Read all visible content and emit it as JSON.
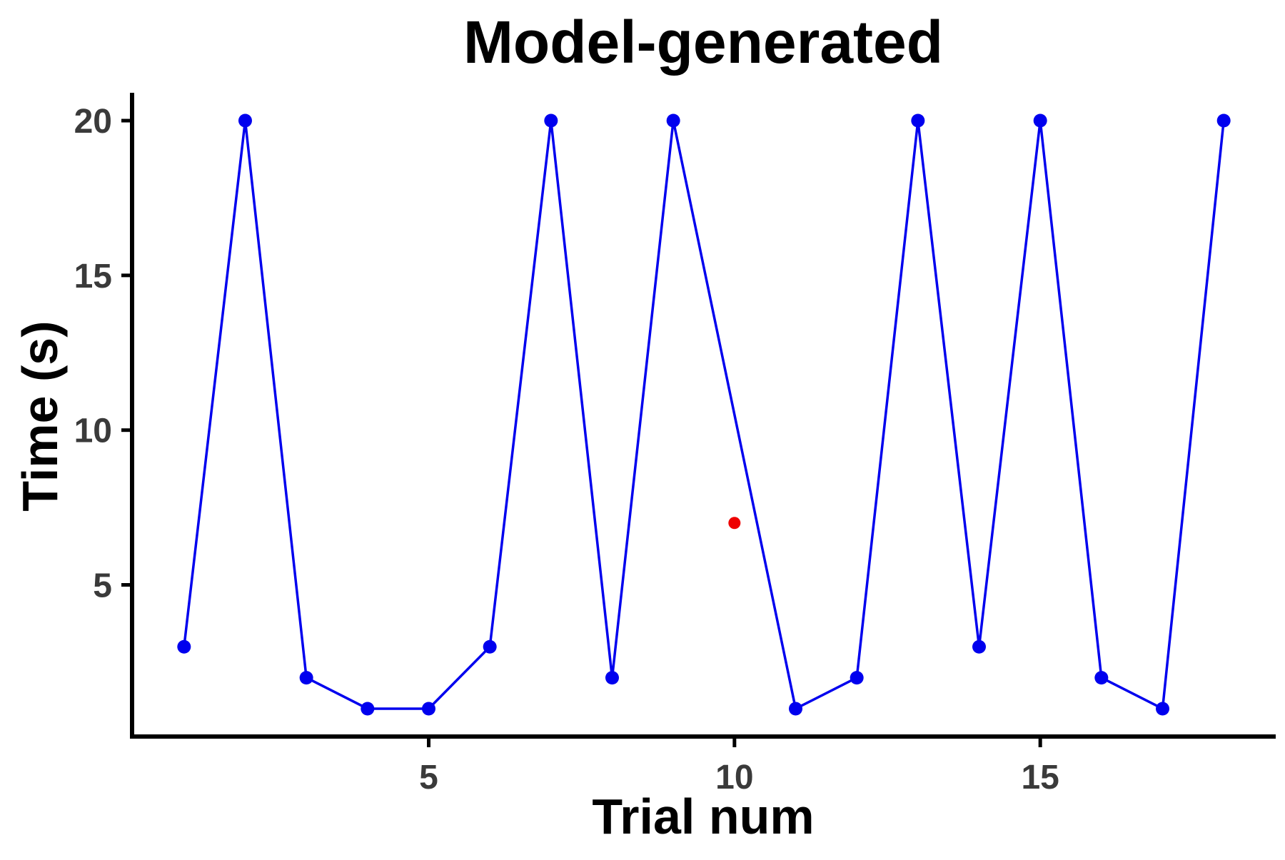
{
  "chart_data": {
    "type": "line",
    "title": "Model-generated",
    "xlabel": "Trial num",
    "ylabel": "Time (s)",
    "xlim": [
      0.15,
      18.85
    ],
    "ylim": [
      0.1,
      20.9
    ],
    "xticks": [
      5,
      10,
      15
    ],
    "yticks": [
      5,
      10,
      15,
      20
    ],
    "grid": false,
    "legend": "none",
    "series": [
      {
        "color": "#0000ee",
        "marker": "circle",
        "x": [
          1,
          2,
          3,
          4,
          5,
          6,
          7,
          8,
          9,
          11,
          12,
          13,
          14,
          15,
          16,
          17,
          18
        ],
        "y": [
          3,
          20,
          2,
          1,
          1,
          3,
          20,
          2,
          20,
          1,
          2,
          20,
          3,
          20,
          2,
          1,
          20
        ]
      },
      {
        "color": "#ee0000",
        "marker": "circle",
        "line": false,
        "x": [
          10
        ],
        "y": [
          7
        ]
      }
    ]
  }
}
